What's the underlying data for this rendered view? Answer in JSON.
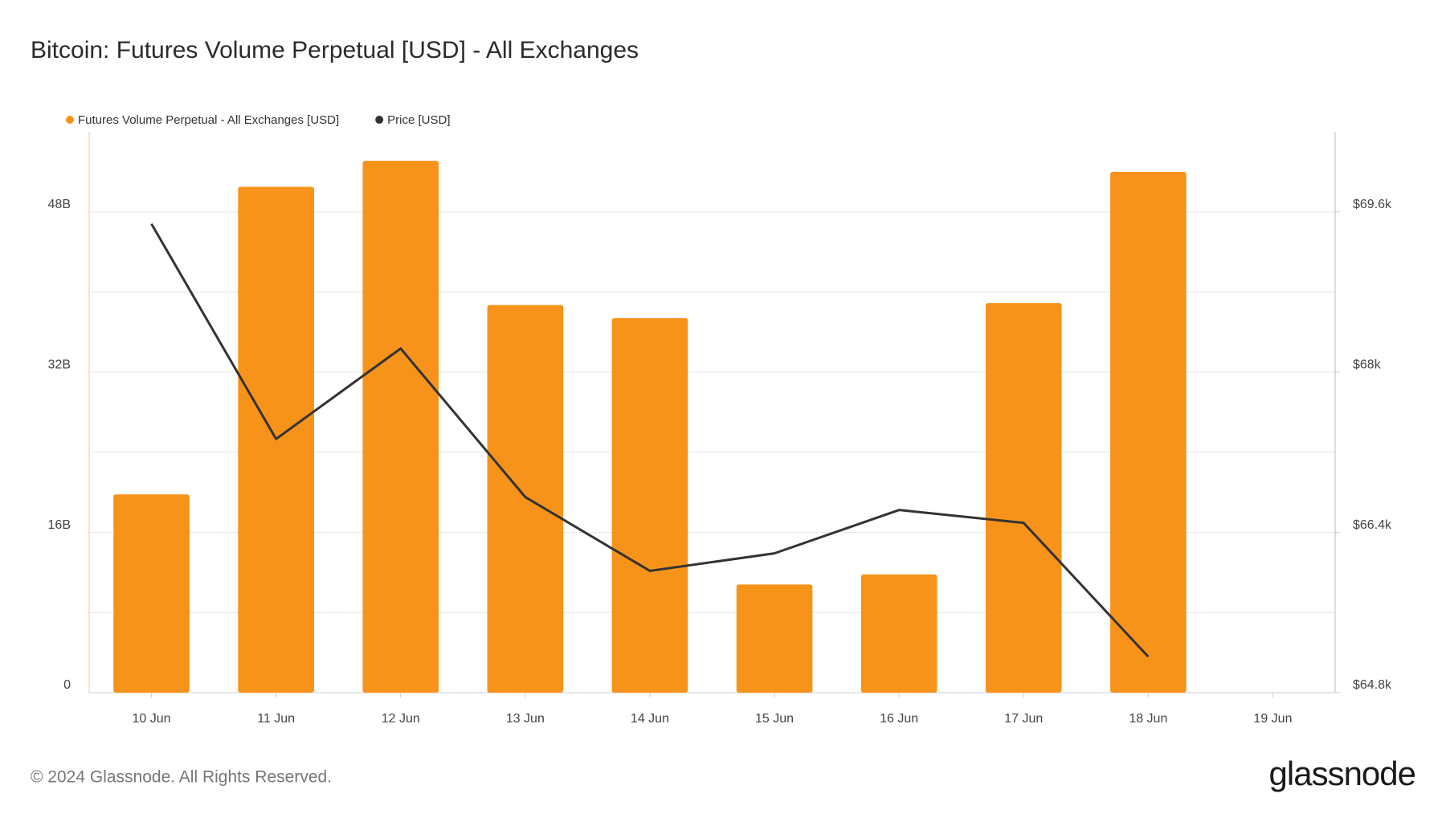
{
  "chart_data": {
    "type": "bar",
    "title": "Bitcoin: Futures Volume Perpetual [USD] - All Exchanges",
    "categories": [
      "10 Jun",
      "11 Jun",
      "12 Jun",
      "13 Jun",
      "14 Jun",
      "15 Jun",
      "16 Jun",
      "17 Jun",
      "18 Jun",
      "19 Jun"
    ],
    "series": [
      {
        "name": "Futures Volume Perpetual - All Exchanges [USD]",
        "color": "#f7931a",
        "type": "bar",
        "values": [
          19800000000,
          50500000000,
          53100000000,
          38700000000,
          37400000000,
          10800000000,
          11800000000,
          38900000000,
          52000000000,
          null
        ]
      },
      {
        "name": "Price [USD]",
        "color": "#333333",
        "type": "line",
        "axis": "y2",
        "values": [
          69480,
          67333,
          68236,
          66753,
          66016,
          66191,
          66624,
          66495,
          65159,
          null
        ]
      }
    ],
    "ylim": [
      0,
      56000000000
    ],
    "yticks": [
      {
        "value": 0,
        "label": "0"
      },
      {
        "value": 16000000000,
        "label": "16B"
      },
      {
        "value": 32000000000,
        "label": "32B"
      },
      {
        "value": 48000000000,
        "label": "48B"
      }
    ],
    "yminorticks": [
      8000000000,
      24000000000,
      40000000000
    ],
    "y2lim": [
      64800,
      70400
    ],
    "y2ticks": [
      {
        "value": 64800,
        "label": "$64.8k"
      },
      {
        "value": 66400,
        "label": "$66.4k"
      },
      {
        "value": 68000,
        "label": "$68k"
      },
      {
        "value": 69600,
        "label": "$69.6k"
      }
    ],
    "grid": true,
    "footer": "© 2024 Glassnode. All Rights Reserved.",
    "brand": "glassnode"
  }
}
